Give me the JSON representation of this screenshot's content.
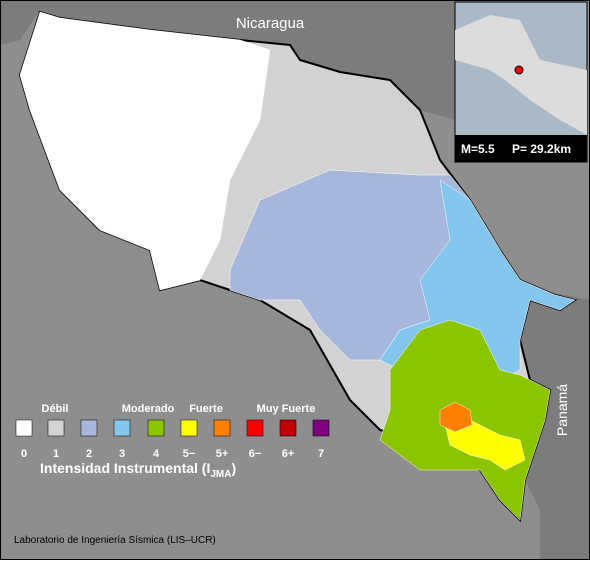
{
  "map_labels": {
    "north": "Nicaragua",
    "east": "Panamá"
  },
  "inset": {
    "magnitude": "M=5.5",
    "depth": "P= 29.2km"
  },
  "legend": {
    "groups": [
      "Débil",
      "Moderado",
      "Fuerte",
      "Muy Fuerte"
    ],
    "items": [
      {
        "label": "0",
        "color": "#ffffff"
      },
      {
        "label": "1",
        "color": "#d2d2d2"
      },
      {
        "label": "2",
        "color": "#a7b7dc"
      },
      {
        "label": "3",
        "color": "#82c6ee"
      },
      {
        "label": "4",
        "color": "#8cc400"
      },
      {
        "label": "5−",
        "color": "#ffff00"
      },
      {
        "label": "5+",
        "color": "#ff8000"
      },
      {
        "label": "6−",
        "color": "#ff0000"
      },
      {
        "label": "6+",
        "color": "#c00000"
      },
      {
        "label": "7",
        "color": "#800080"
      }
    ],
    "title": "Intensidad Instrumental (I",
    "title_sub": "JMA",
    "title_end": ")"
  },
  "credit": "Laboratorio de Ingeniería Sísmica (LIS–UCR)"
}
